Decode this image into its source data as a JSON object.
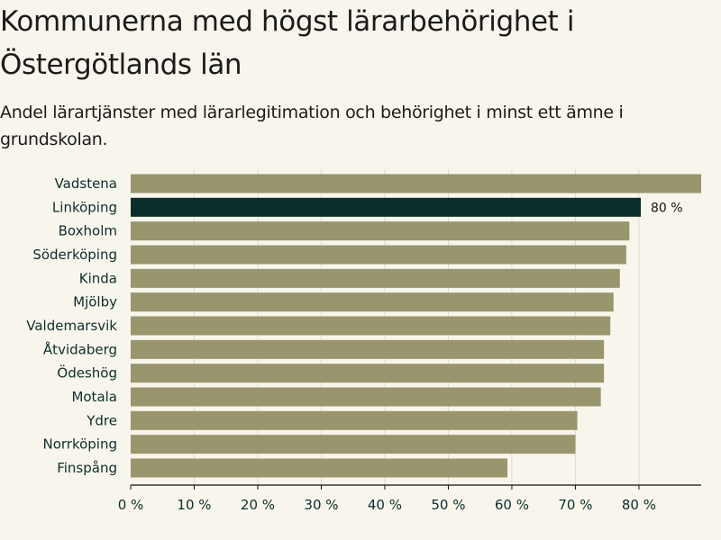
{
  "header": {
    "title": "Kommunerna med högst lärarbehörighet i Östergötlands län",
    "subtitle": "Andel lärartjänster med lärarlegitimation och behörighet i minst ett ämne i grundskolan."
  },
  "chart_data": {
    "type": "bar",
    "orientation": "horizontal",
    "title": "Kommunerna med högst lärarbehörighet i Östergötlands län",
    "subtitle": "Andel lärartjänster med lärarlegitimation och behörighet i minst ett ämne i grundskolan.",
    "categories": [
      "Vadstena",
      "Linköping",
      "Boxholm",
      "Söderköping",
      "Kinda",
      "Mjölby",
      "Valdemarsvik",
      "Åtvidaberg",
      "Ödeshög",
      "Motala",
      "Ydre",
      "Norrköping",
      "Finspång"
    ],
    "values": [
      89.8,
      80.3,
      78.5,
      78.0,
      77.0,
      76.0,
      75.5,
      74.5,
      74.5,
      74.0,
      70.3,
      70.0,
      59.3
    ],
    "highlight_index": 1,
    "data_labels": [
      {
        "index": 1,
        "text": "80 %"
      }
    ],
    "xlim": [
      0,
      89.8
    ],
    "xticks": [
      0,
      10,
      20,
      30,
      40,
      50,
      60,
      70,
      80
    ],
    "xtick_labels": [
      "0 %",
      "10 %",
      "20 %",
      "30 %",
      "40 %",
      "50 %",
      "60 %",
      "70 %",
      "80 %"
    ],
    "grid": "vertical",
    "colors": {
      "bar": "#99956c",
      "highlight": "#0b2e2a",
      "grid": "#dedbd0",
      "axis": "#111111",
      "text": "#0b2e2a"
    }
  }
}
